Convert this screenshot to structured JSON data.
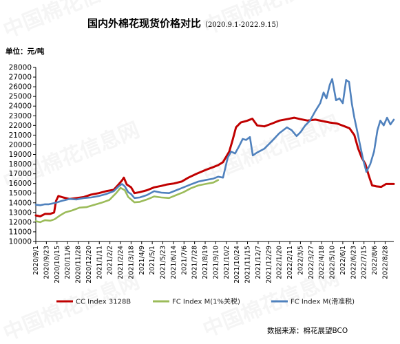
{
  "chart_data": {
    "type": "line",
    "title": "国内外棉花现货价格对比",
    "subtitle": "（2020.9.1-2022.9.15）",
    "unit_label": "单位：元/吨",
    "source": "数据来源：棉花展望BCO",
    "ylim": [
      10000,
      28000
    ],
    "ytick_step": 1000,
    "xlim": [
      "2020-09-01",
      "2022-09-15"
    ],
    "x_ticks": [
      "2020/9/1",
      "2020/9/23",
      "2020/10/15",
      "2020/11/6",
      "2020/11/28",
      "2020/12/20",
      "2021/1/11",
      "2021/2/2",
      "2021/2/24",
      "2021/3/18",
      "2021/4/9",
      "2021/5/1",
      "2021/5/23",
      "2021/6/14",
      "2021/7/6",
      "2021/7/28",
      "2021/8/19",
      "2021/9/10",
      "2021/10/2",
      "2021/10/24",
      "2021/11/15",
      "2021/12/7",
      "2021/12/29",
      "2022/1/20",
      "2022/2/11",
      "2022/3/5",
      "2022/3/27",
      "2022/4/18",
      "2022/5/10",
      "2022/6/1",
      "2022/6/23",
      "2022/7/15",
      "2022/8/6",
      "2022/8/28"
    ],
    "legend_placement": "bottom",
    "series": [
      {
        "name": "CC Index 3128B",
        "color": "#c00000",
        "points": [
          [
            "2020-09-01",
            12700
          ],
          [
            "2020-09-10",
            12600
          ],
          [
            "2020-09-20",
            12850
          ],
          [
            "2020-10-01",
            12850
          ],
          [
            "2020-10-09",
            13000
          ],
          [
            "2020-10-13",
            14200
          ],
          [
            "2020-10-18",
            14700
          ],
          [
            "2020-10-28",
            14550
          ],
          [
            "2020-11-10",
            14400
          ],
          [
            "2020-11-25",
            14500
          ],
          [
            "2020-12-10",
            14600
          ],
          [
            "2020-12-25",
            14850
          ],
          [
            "2021-01-10",
            15000
          ],
          [
            "2021-01-25",
            15200
          ],
          [
            "2021-02-10",
            15350
          ],
          [
            "2021-02-20",
            15900
          ],
          [
            "2021-02-27",
            16300
          ],
          [
            "2021-03-03",
            16600
          ],
          [
            "2021-03-09",
            15900
          ],
          [
            "2021-03-18",
            15600
          ],
          [
            "2021-03-25",
            15000
          ],
          [
            "2021-04-05",
            15100
          ],
          [
            "2021-04-20",
            15300
          ],
          [
            "2021-05-05",
            15600
          ],
          [
            "2021-05-20",
            15750
          ],
          [
            "2021-06-01",
            15900
          ],
          [
            "2021-06-15",
            16000
          ],
          [
            "2021-07-01",
            16200
          ],
          [
            "2021-07-15",
            16600
          ],
          [
            "2021-08-01",
            17000
          ],
          [
            "2021-08-20",
            17400
          ],
          [
            "2021-09-05",
            17700
          ],
          [
            "2021-09-15",
            17900
          ],
          [
            "2021-09-25",
            18200
          ],
          [
            "2021-10-08",
            19300
          ],
          [
            "2021-10-15",
            20500
          ],
          [
            "2021-10-22",
            21800
          ],
          [
            "2021-11-01",
            22300
          ],
          [
            "2021-11-15",
            22500
          ],
          [
            "2021-11-25",
            22700
          ],
          [
            "2021-12-05",
            22000
          ],
          [
            "2021-12-20",
            21900
          ],
          [
            "2022-01-05",
            22200
          ],
          [
            "2022-01-20",
            22500
          ],
          [
            "2022-02-05",
            22650
          ],
          [
            "2022-02-20",
            22800
          ],
          [
            "2022-03-05",
            22650
          ],
          [
            "2022-03-20",
            22500
          ],
          [
            "2022-04-05",
            22600
          ],
          [
            "2022-04-20",
            22450
          ],
          [
            "2022-05-05",
            22300
          ],
          [
            "2022-05-20",
            22200
          ],
          [
            "2022-06-05",
            21900
          ],
          [
            "2022-06-15",
            21700
          ],
          [
            "2022-06-25",
            21000
          ],
          [
            "2022-07-03",
            19600
          ],
          [
            "2022-07-10",
            18700
          ],
          [
            "2022-07-18",
            18000
          ],
          [
            "2022-07-25",
            16800
          ],
          [
            "2022-08-01",
            15800
          ],
          [
            "2022-08-10",
            15700
          ],
          [
            "2022-08-20",
            15650
          ],
          [
            "2022-08-30",
            15950
          ],
          [
            "2022-09-15",
            15950
          ]
        ]
      },
      {
        "name": "FC Index M(1%关税)",
        "color": "#9bbb59",
        "points": [
          [
            "2020-09-01",
            12100
          ],
          [
            "2020-09-10",
            12000
          ],
          [
            "2020-09-20",
            12200
          ],
          [
            "2020-10-01",
            12150
          ],
          [
            "2020-10-10",
            12300
          ],
          [
            "2020-10-20",
            12650
          ],
          [
            "2020-11-01",
            13000
          ],
          [
            "2020-11-15",
            13200
          ],
          [
            "2020-12-01",
            13500
          ],
          [
            "2020-12-15",
            13550
          ],
          [
            "2021-01-01",
            13800
          ],
          [
            "2021-01-15",
            14000
          ],
          [
            "2021-02-01",
            14300
          ],
          [
            "2021-02-15",
            15000
          ],
          [
            "2021-02-24",
            15550
          ],
          [
            "2021-03-05",
            15300
          ],
          [
            "2021-03-12",
            14600
          ],
          [
            "2021-03-18",
            14350
          ],
          [
            "2021-03-25",
            14050
          ],
          [
            "2021-04-05",
            14100
          ],
          [
            "2021-04-20",
            14350
          ],
          [
            "2021-05-05",
            14650
          ],
          [
            "2021-05-20",
            14550
          ],
          [
            "2021-06-05",
            14500
          ],
          [
            "2021-06-20",
            14800
          ],
          [
            "2021-07-05",
            15100
          ],
          [
            "2021-07-20",
            15500
          ],
          [
            "2021-08-05",
            15800
          ],
          [
            "2021-08-20",
            15950
          ],
          [
            "2021-09-05",
            16100
          ],
          [
            "2021-09-15",
            16350
          ]
        ]
      },
      {
        "name": "FC Index M(滑准税)",
        "color": "#4f81bd",
        "points": [
          [
            "2020-09-01",
            13800
          ],
          [
            "2020-09-10",
            13750
          ],
          [
            "2020-09-20",
            13850
          ],
          [
            "2020-09-28",
            13850
          ],
          [
            "2020-10-12",
            14000
          ],
          [
            "2020-10-25",
            14200
          ],
          [
            "2020-11-10",
            14400
          ],
          [
            "2020-11-25",
            14350
          ],
          [
            "2020-12-10",
            14500
          ],
          [
            "2020-12-25",
            14550
          ],
          [
            "2021-01-10",
            14700
          ],
          [
            "2021-01-25",
            14900
          ],
          [
            "2021-02-10",
            15200
          ],
          [
            "2021-02-20",
            15700
          ],
          [
            "2021-02-27",
            15950
          ],
          [
            "2021-03-05",
            15700
          ],
          [
            "2021-03-12",
            15100
          ],
          [
            "2021-03-18",
            14900
          ],
          [
            "2021-03-25",
            14500
          ],
          [
            "2021-04-05",
            14550
          ],
          [
            "2021-04-20",
            14800
          ],
          [
            "2021-05-05",
            15200
          ],
          [
            "2021-05-20",
            15050
          ],
          [
            "2021-06-05",
            15000
          ],
          [
            "2021-06-20",
            15300
          ],
          [
            "2021-07-05",
            15600
          ],
          [
            "2021-07-20",
            15900
          ],
          [
            "2021-08-05",
            16200
          ],
          [
            "2021-08-20",
            16350
          ],
          [
            "2021-09-05",
            16500
          ],
          [
            "2021-09-15",
            16700
          ],
          [
            "2021-09-25",
            16600
          ],
          [
            "2021-10-05",
            18700
          ],
          [
            "2021-10-12",
            19300
          ],
          [
            "2021-10-20",
            19100
          ],
          [
            "2021-10-28",
            19800
          ],
          [
            "2021-11-05",
            20600
          ],
          [
            "2021-11-12",
            20500
          ],
          [
            "2021-11-20",
            20800
          ],
          [
            "2021-11-26",
            18900
          ],
          [
            "2021-12-05",
            19200
          ],
          [
            "2021-12-20",
            19600
          ],
          [
            "2022-01-05",
            20400
          ],
          [
            "2022-01-20",
            21200
          ],
          [
            "2022-02-05",
            21800
          ],
          [
            "2022-02-15",
            21500
          ],
          [
            "2022-02-25",
            20900
          ],
          [
            "2022-03-05",
            21300
          ],
          [
            "2022-03-15",
            22000
          ],
          [
            "2022-03-25",
            22500
          ],
          [
            "2022-04-05",
            23500
          ],
          [
            "2022-04-15",
            24300
          ],
          [
            "2022-04-22",
            25400
          ],
          [
            "2022-04-28",
            24800
          ],
          [
            "2022-05-05",
            26200
          ],
          [
            "2022-05-10",
            26800
          ],
          [
            "2022-05-18",
            24600
          ],
          [
            "2022-05-25",
            24800
          ],
          [
            "2022-06-01",
            24300
          ],
          [
            "2022-06-08",
            26700
          ],
          [
            "2022-06-14",
            26500
          ],
          [
            "2022-06-20",
            24200
          ],
          [
            "2022-06-25",
            22800
          ],
          [
            "2022-07-01",
            21400
          ],
          [
            "2022-07-08",
            19700
          ],
          [
            "2022-07-14",
            18300
          ],
          [
            "2022-07-20",
            17200
          ],
          [
            "2022-07-28",
            18000
          ],
          [
            "2022-08-05",
            19300
          ],
          [
            "2022-08-12",
            21500
          ],
          [
            "2022-08-18",
            22500
          ],
          [
            "2022-08-25",
            22000
          ],
          [
            "2022-09-01",
            22800
          ],
          [
            "2022-09-08",
            22100
          ],
          [
            "2022-09-15",
            22600
          ]
        ]
      }
    ]
  }
}
